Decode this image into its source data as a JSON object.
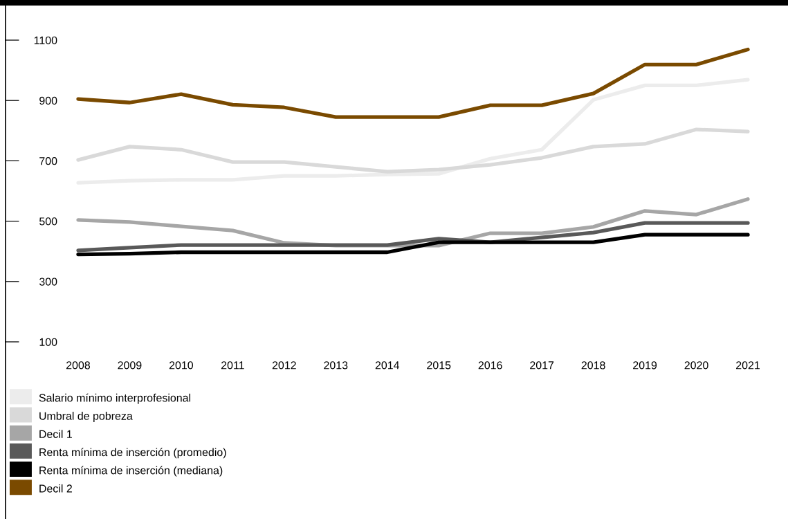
{
  "chart_data": {
    "type": "line",
    "categories": [
      "2008",
      "2009",
      "2010",
      "2011",
      "2012",
      "2013",
      "2014",
      "2015",
      "2016",
      "2017",
      "2018",
      "2019",
      "2020",
      "2021"
    ],
    "series": [
      {
        "name": "Salario mínimo interprofesional",
        "color": "#ececec",
        "values": [
          627,
          634,
          637,
          637,
          650,
          650,
          655,
          657,
          707,
          737,
          902,
          950,
          950,
          969
        ]
      },
      {
        "name": "Umbral de pobreza",
        "color": "#d9d9d9",
        "values": [
          703,
          747,
          737,
          696,
          696,
          680,
          664,
          671,
          687,
          710,
          747,
          756,
          804,
          797
        ]
      },
      {
        "name": "Decil 1",
        "color": "#a6a6a6",
        "values": [
          504,
          497,
          483,
          469,
          428,
          419,
          419,
          419,
          460,
          460,
          481,
          534,
          522,
          573
        ]
      },
      {
        "name": "Renta mínima de inserción (promedio)",
        "color": "#595959",
        "values": [
          403,
          412,
          421,
          421,
          421,
          421,
          421,
          442,
          430,
          446,
          462,
          494,
          494,
          494
        ]
      },
      {
        "name": "Renta mínima de inserción (mediana)",
        "color": "#000000",
        "values": [
          390,
          392,
          397,
          397,
          397,
          397,
          397,
          430,
          430,
          430,
          430,
          455,
          455,
          455
        ]
      },
      {
        "name": "Decil 2",
        "color": "#7a4a00",
        "values": [
          905,
          893,
          921,
          886,
          877,
          845,
          845,
          845,
          884,
          884,
          923,
          1019,
          1019,
          1069
        ]
      }
    ],
    "ylim": [
      100,
      1100
    ],
    "yticks": [
      100,
      300,
      500,
      700,
      900,
      1100
    ],
    "grid": false,
    "legend": "bottom",
    "marker": "none",
    "line_style": "solid"
  }
}
